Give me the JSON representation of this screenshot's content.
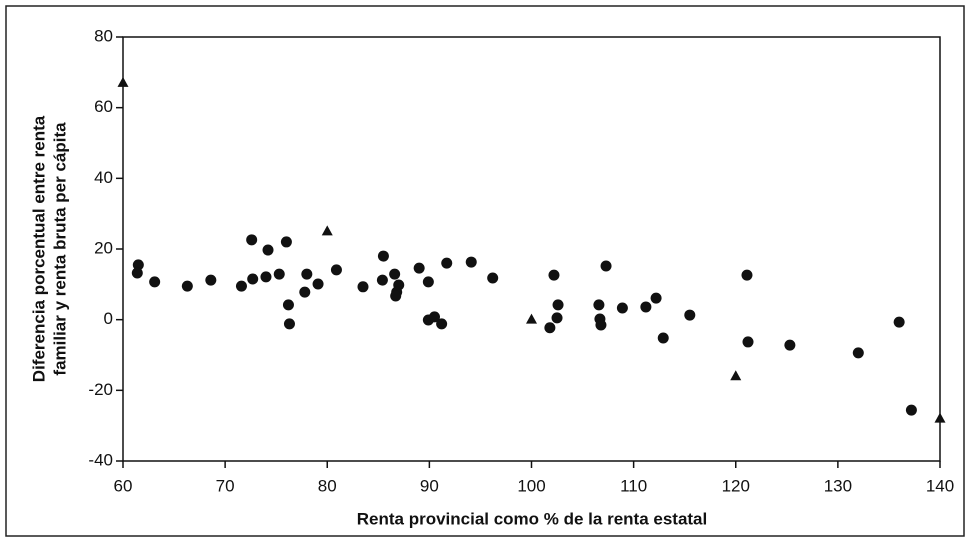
{
  "chart_data": {
    "type": "scatter",
    "xlabel": "Renta provincial como % de la renta estatal",
    "ylabel": [
      "Diferencia porcentual entre renta",
      "familiar y renta bruta per cápita"
    ],
    "xlim": [
      60,
      140
    ],
    "xticks": [
      60,
      70,
      80,
      90,
      100,
      110,
      120,
      130,
      140
    ],
    "ylim": [
      -40,
      80
    ],
    "yticks": [
      -40,
      -20,
      0,
      20,
      40,
      60,
      80
    ],
    "grid": false,
    "series": [
      {
        "marker": "circle",
        "color": "#111111",
        "x": [
          61.5,
          61.4,
          63.1,
          66.3,
          68.6,
          71.6,
          72.6,
          72.7,
          74.2,
          74.0,
          75.3,
          76.0,
          76.2,
          76.3,
          77.8,
          78.0,
          79.1,
          80.9,
          83.5,
          85.5,
          85.4,
          86.6,
          87.0,
          86.8,
          86.7,
          89.0,
          89.9,
          89.9,
          90.5,
          91.2,
          91.7,
          94.1,
          96.2,
          101.8,
          102.2,
          102.5,
          102.6,
          106.6,
          106.7,
          106.8,
          107.3,
          108.9,
          111.2,
          112.2,
          112.9,
          115.5,
          121.1,
          121.2,
          125.3,
          132.0,
          136.0,
          137.2
        ],
        "values": [
          15.5,
          13.2,
          10.7,
          9.5,
          11.2,
          9.5,
          22.6,
          11.5,
          19.7,
          12.1,
          12.9,
          22.0,
          4.2,
          -1.2,
          7.8,
          12.9,
          10.1,
          14.1,
          9.3,
          18.0,
          11.2,
          12.9,
          9.8,
          7.8,
          6.7,
          14.6,
          10.7,
          -0.1,
          0.8,
          -1.2,
          16.0,
          16.3,
          11.8,
          -2.3,
          12.6,
          0.5,
          4.2,
          4.2,
          0.2,
          -1.5,
          15.2,
          3.3,
          3.6,
          6.1,
          -5.2,
          1.3,
          12.6,
          -6.3,
          -7.2,
          -9.4,
          -0.7,
          -25.6
        ]
      },
      {
        "marker": "triangle",
        "color": "#111111",
        "x": [
          60,
          80,
          100,
          120,
          140
        ],
        "values": [
          67,
          25,
          0,
          -16,
          -28
        ]
      }
    ]
  }
}
